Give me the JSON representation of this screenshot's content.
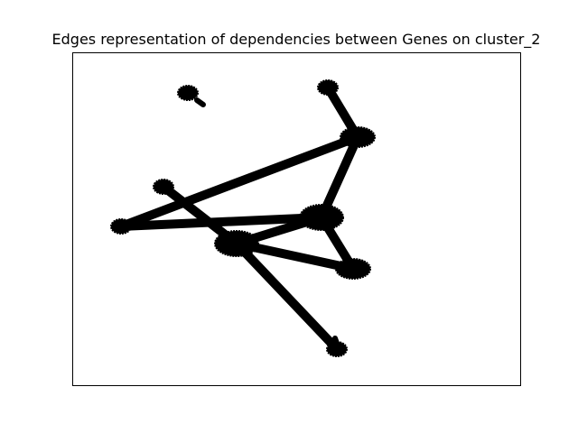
{
  "figure": {
    "title": "Edges representation of dependencies between Genes on cluster_2"
  },
  "colors": {
    "background": "#ffffff",
    "frame": "#000000",
    "node": "#000000",
    "edge": "#000000"
  },
  "graph": {
    "directed": true,
    "nodes": [
      {
        "id": "n1",
        "shape": "small-blob"
      },
      {
        "id": "n2",
        "shape": "small-blob"
      },
      {
        "id": "n3",
        "shape": "medium-blob"
      },
      {
        "id": "n4",
        "shape": "small-blob"
      },
      {
        "id": "n5",
        "shape": "large-blob"
      },
      {
        "id": "n6",
        "shape": "small-blob"
      },
      {
        "id": "n7",
        "shape": "large-blob"
      },
      {
        "id": "n8",
        "shape": "medium-blob"
      },
      {
        "id": "n9",
        "shape": "small-blob"
      }
    ],
    "edges": [
      {
        "source": "n2",
        "target": "n3"
      },
      {
        "source": "n3",
        "target": "n5"
      },
      {
        "source": "n3",
        "target": "n6"
      },
      {
        "source": "n5",
        "target": "n6"
      },
      {
        "source": "n4",
        "target": "n7"
      },
      {
        "source": "n7",
        "target": "n5"
      },
      {
        "source": "n7",
        "target": "n8"
      },
      {
        "source": "n5",
        "target": "n8"
      },
      {
        "source": "n7",
        "target": "n9"
      }
    ]
  }
}
